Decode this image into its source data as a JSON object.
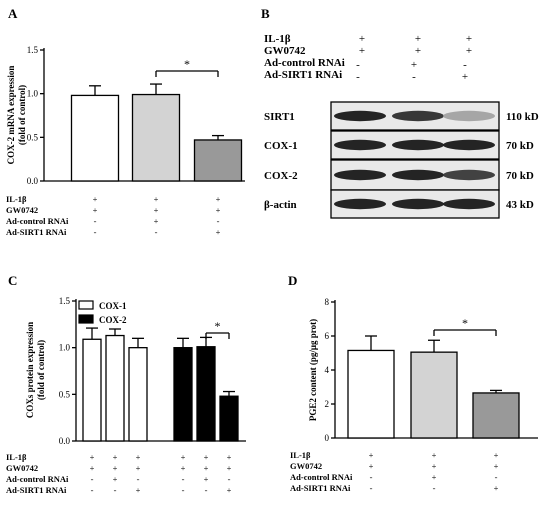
{
  "panels": {
    "A": {
      "letter": "A",
      "chart_data": {
        "type": "bar",
        "ylabel": "COX-2 mRNA expression (fold of control)",
        "ylabel_lines": [
          "COX-2 mRNA expression",
          "(fold of control)"
        ],
        "ylim": [
          0,
          1.5
        ],
        "yticks": [
          "0.0",
          "0.5",
          "1.0",
          "1.5"
        ],
        "values": [
          0.98,
          0.99,
          0.47
        ],
        "errors": [
          0.11,
          0.12,
          0.05
        ],
        "colors": [
          "#ffffff",
          "#d3d3d3",
          "#999999"
        ],
        "significance": {
          "from": 1,
          "to": 2,
          "label": "*"
        }
      },
      "conditions": [
        {
          "label": "IL-1β",
          "marks": [
            "+",
            "+",
            "+"
          ]
        },
        {
          "label": "GW0742",
          "marks": [
            "+",
            "+",
            "+"
          ]
        },
        {
          "label": "Ad-control RNAi",
          "marks": [
            "-",
            "+",
            "-"
          ]
        },
        {
          "label": "Ad-SIRT1 RNAi",
          "marks": [
            "-",
            "-",
            "+"
          ]
        }
      ]
    },
    "B": {
      "letter": "B",
      "conditions": [
        {
          "label": "IL-1β",
          "marks": [
            "+",
            "+",
            "+"
          ]
        },
        {
          "label": "GW0742",
          "marks": [
            "+",
            "+",
            "+"
          ]
        },
        {
          "label": "Ad-control RNAi",
          "marks": [
            "-",
            "+",
            "-"
          ]
        },
        {
          "label": "Ad-SIRT1 RNAi",
          "marks": [
            "-",
            "-",
            "+"
          ]
        }
      ],
      "blots": [
        {
          "protein": "SIRT1",
          "size": "110 kD",
          "intensity": [
            1.0,
            0.9,
            0.35
          ]
        },
        {
          "protein": "COX-1",
          "size": "70 kD",
          "intensity": [
            1.0,
            1.0,
            1.0
          ]
        },
        {
          "protein": "COX-2",
          "size": "70 kD",
          "intensity": [
            1.0,
            1.0,
            0.85
          ]
        },
        {
          "protein": "β-actin",
          "size": "43 kD",
          "intensity": [
            1.0,
            1.0,
            1.0
          ]
        }
      ]
    },
    "C": {
      "letter": "C",
      "chart_data": {
        "type": "bar",
        "ylabel": "COXs protein expression (fold of control)",
        "ylabel_lines": [
          "COXs protein expression",
          "(fold of control)"
        ],
        "ylim": [
          0,
          1.5
        ],
        "yticks": [
          "0.0",
          "0.5",
          "1.0",
          "1.5"
        ],
        "legend": [
          {
            "name": "COX-1",
            "color": "#ffffff"
          },
          {
            "name": "COX-2",
            "color": "#000000"
          }
        ],
        "series": [
          {
            "name": "COX-1",
            "values": [
              1.09,
              1.13,
              1.0
            ],
            "errors": [
              0.12,
              0.07,
              0.1
            ]
          },
          {
            "name": "COX-2",
            "values": [
              1.0,
              1.01,
              0.48
            ],
            "errors": [
              0.1,
              0.1,
              0.05
            ]
          }
        ],
        "significance": {
          "series": 1,
          "from": 1,
          "to": 2,
          "label": "*"
        }
      },
      "conditions": [
        {
          "label": "IL-1β",
          "marks": [
            "+",
            "+",
            "+",
            "+",
            "+",
            "+"
          ]
        },
        {
          "label": "GW0742",
          "marks": [
            "+",
            "+",
            "+",
            "+",
            "+",
            "+"
          ]
        },
        {
          "label": "Ad-control RNAi",
          "marks": [
            "-",
            "+",
            "-",
            "-",
            "+",
            "-"
          ]
        },
        {
          "label": "Ad-SIRT1 RNAi",
          "marks": [
            "-",
            "-",
            "+",
            "-",
            "-",
            "+"
          ]
        }
      ]
    },
    "D": {
      "letter": "D",
      "chart_data": {
        "type": "bar",
        "ylabel": "PGE2 content (pg/μg prot)",
        "ylim": [
          0,
          8
        ],
        "yticks": [
          "0",
          "2",
          "4",
          "6",
          "8"
        ],
        "values": [
          5.15,
          5.05,
          2.65
        ],
        "errors": [
          0.85,
          0.7,
          0.15
        ],
        "colors": [
          "#ffffff",
          "#d3d3d3",
          "#999999"
        ],
        "significance": {
          "from": 1,
          "to": 2,
          "label": "*"
        }
      },
      "conditions": [
        {
          "label": "IL-1β",
          "marks": [
            "+",
            "+",
            "+"
          ]
        },
        {
          "label": "GW0742",
          "marks": [
            "+",
            "+",
            "+"
          ]
        },
        {
          "label": "Ad-control RNAi",
          "marks": [
            "-",
            "+",
            "-"
          ]
        },
        {
          "label": "Ad-SIRT1 RNAi",
          "marks": [
            "-",
            "-",
            "+"
          ]
        }
      ]
    }
  }
}
